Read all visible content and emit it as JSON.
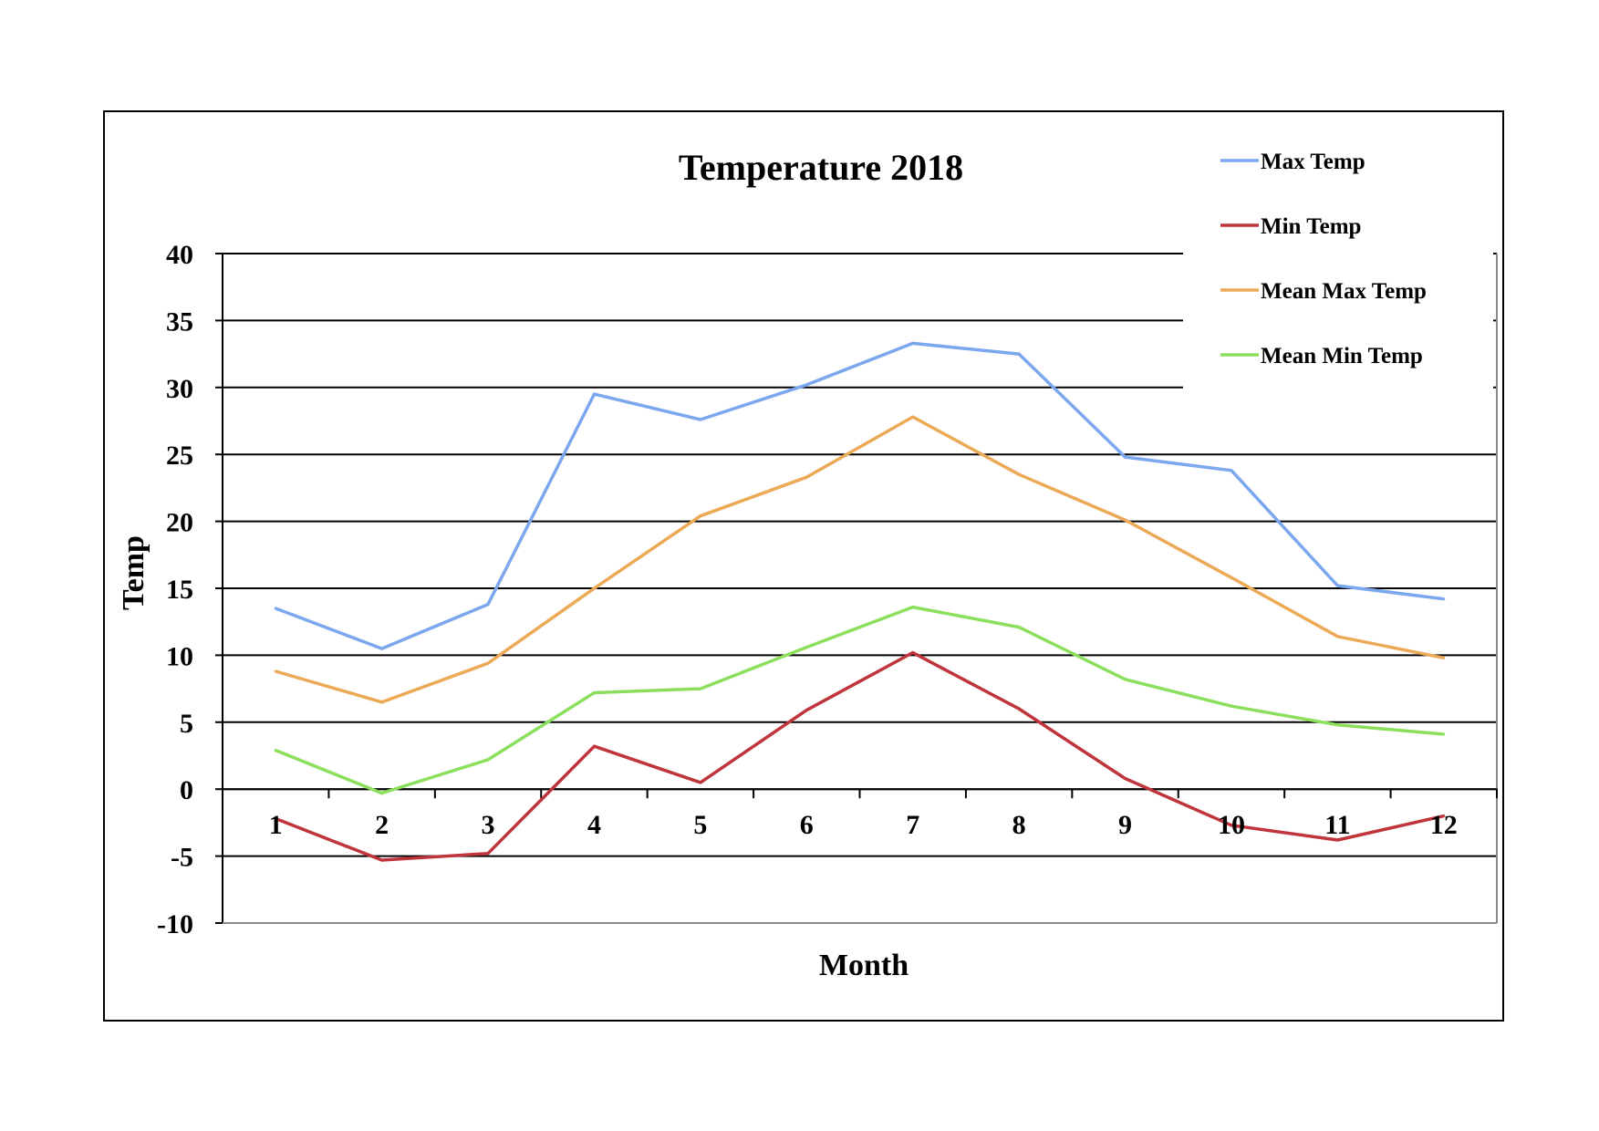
{
  "chart_data": {
    "type": "line",
    "title": "Temperature 2018",
    "xlabel": "Month",
    "ylabel": "Temp",
    "categories": [
      "1",
      "2",
      "3",
      "4",
      "5",
      "6",
      "7",
      "8",
      "9",
      "10",
      "11",
      "12"
    ],
    "yticks": [
      "40",
      "35",
      "30",
      "25",
      "20",
      "15",
      "10",
      "5",
      "0",
      "-5",
      "-10"
    ],
    "ylim": [
      -10,
      40
    ],
    "ystep": 5,
    "grid": true,
    "legend_position": "top-right",
    "series": [
      {
        "name": "Max Temp",
        "color": "#7ba7ee",
        "values": [
          13.5,
          10.5,
          13.8,
          29.5,
          27.6,
          30.2,
          33.3,
          32.5,
          24.8,
          23.8,
          15.2,
          14.2
        ]
      },
      {
        "name": "Min Temp",
        "color": "#c0343c",
        "values": [
          -2.2,
          -5.3,
          -4.8,
          3.2,
          0.5,
          5.9,
          10.2,
          6.0,
          0.8,
          -2.7,
          -3.8,
          -2.0
        ]
      },
      {
        "name": "Mean Max Temp",
        "color": "#eca956",
        "values": [
          8.8,
          6.5,
          9.4,
          15.0,
          20.4,
          23.3,
          27.8,
          23.5,
          20.1,
          15.8,
          11.4,
          9.8
        ]
      },
      {
        "name": "Mean Min Temp",
        "color": "#8cdf5c",
        "values": [
          2.9,
          -0.3,
          2.2,
          7.2,
          7.5,
          10.6,
          13.6,
          12.1,
          8.2,
          6.2,
          4.8,
          4.1
        ]
      }
    ]
  }
}
